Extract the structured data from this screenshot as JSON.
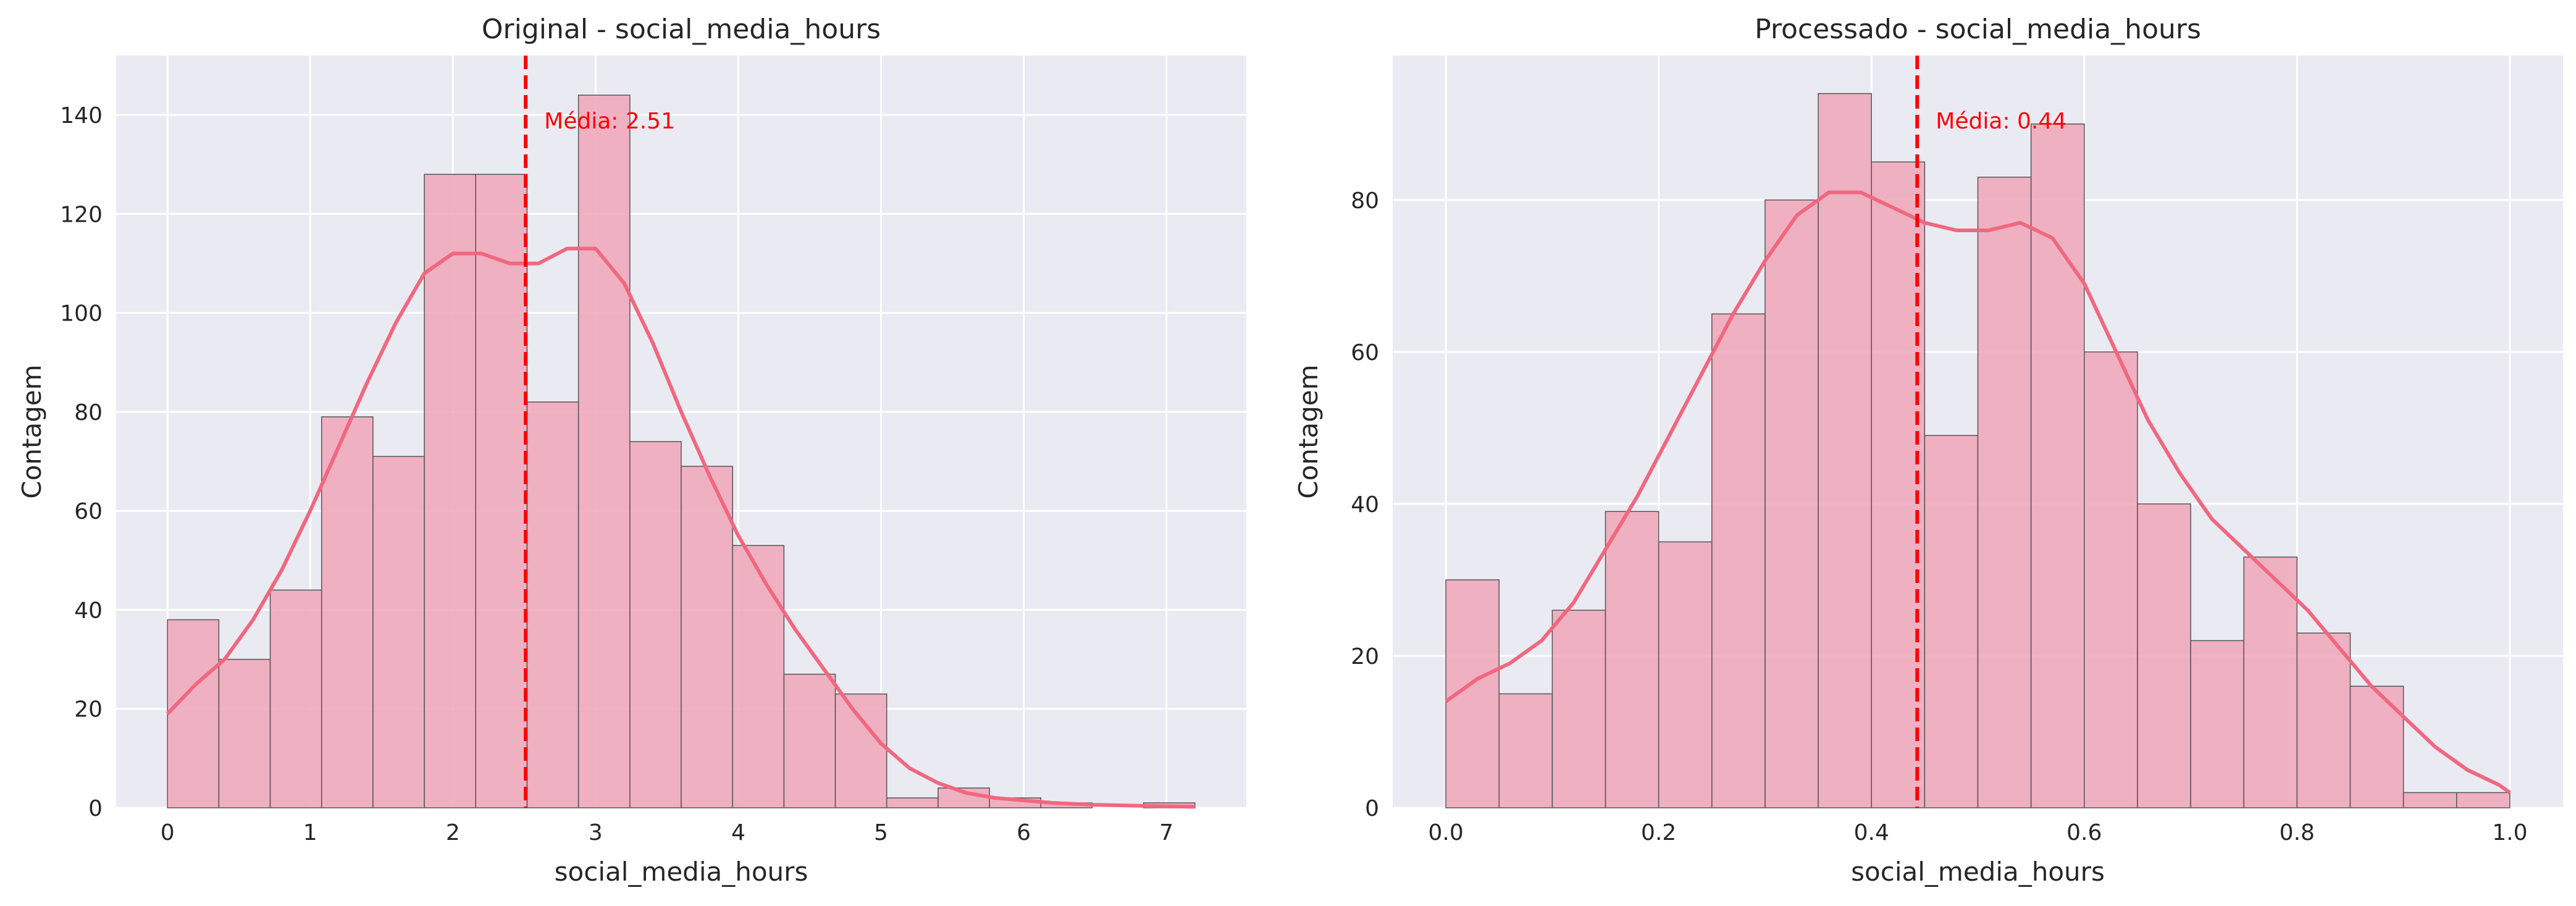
{
  "chart_data": [
    {
      "type": "bar",
      "title": "Original - social_media_hours",
      "xlabel": "social_media_hours",
      "ylabel": "Contagem",
      "xlim": [
        -0.36,
        7.56
      ],
      "ylim": [
        0,
        152
      ],
      "xticks": [
        0,
        1,
        2,
        3,
        4,
        5,
        6,
        7
      ],
      "yticks": [
        0,
        20,
        40,
        60,
        80,
        100,
        120,
        140
      ],
      "bin_edges": [
        0,
        0.36,
        0.72,
        1.08,
        1.44,
        1.8,
        2.16,
        2.52,
        2.88,
        3.24,
        3.6,
        3.96,
        4.32,
        4.68,
        5.04,
        5.4,
        5.76,
        6.12,
        6.48,
        6.84,
        7.2
      ],
      "counts": [
        38,
        30,
        44,
        79,
        71,
        128,
        128,
        82,
        144,
        74,
        69,
        53,
        27,
        23,
        2,
        4,
        2,
        1,
        0,
        1
      ],
      "kde": [
        [
          0,
          19
        ],
        [
          0.2,
          25
        ],
        [
          0.4,
          30
        ],
        [
          0.6,
          38
        ],
        [
          0.8,
          48
        ],
        [
          1.0,
          60
        ],
        [
          1.2,
          73
        ],
        [
          1.4,
          86
        ],
        [
          1.6,
          98
        ],
        [
          1.8,
          108
        ],
        [
          2.0,
          112
        ],
        [
          2.2,
          112
        ],
        [
          2.4,
          110
        ],
        [
          2.6,
          110
        ],
        [
          2.8,
          113
        ],
        [
          3.0,
          113
        ],
        [
          3.2,
          106
        ],
        [
          3.4,
          94
        ],
        [
          3.6,
          80
        ],
        [
          3.8,
          67
        ],
        [
          4.0,
          55
        ],
        [
          4.2,
          45
        ],
        [
          4.4,
          36
        ],
        [
          4.6,
          28
        ],
        [
          4.8,
          20
        ],
        [
          5.0,
          13
        ],
        [
          5.2,
          8
        ],
        [
          5.4,
          5
        ],
        [
          5.6,
          3
        ],
        [
          5.8,
          2
        ],
        [
          6.0,
          1.5
        ],
        [
          6.2,
          1
        ],
        [
          6.5,
          0.6
        ],
        [
          7.0,
          0.3
        ],
        [
          7.2,
          0.2
        ]
      ],
      "mean": 2.51,
      "mean_label": "Média: 2.51",
      "grid": true,
      "colors": {
        "bar": "#f0aabc",
        "edge": "#555555",
        "kde": "#f0687f",
        "mean": "#ff0000",
        "background": "#eaeaf2",
        "grid": "#ffffff"
      }
    },
    {
      "type": "bar",
      "title": "Processado - social_media_hours",
      "xlabel": "social_media_hours",
      "ylabel": "Contagem",
      "xlim": [
        -0.05,
        1.05
      ],
      "ylim": [
        0,
        99
      ],
      "xticks": [
        0.0,
        0.2,
        0.4,
        0.6,
        0.8,
        1.0
      ],
      "yticks": [
        0,
        20,
        40,
        60,
        80
      ],
      "bin_edges": [
        0,
        0.05,
        0.1,
        0.15,
        0.2,
        0.25,
        0.3,
        0.35,
        0.4,
        0.45,
        0.5,
        0.55,
        0.6,
        0.65,
        0.7,
        0.75,
        0.8,
        0.85,
        0.9,
        0.95,
        1.0
      ],
      "counts": [
        30,
        15,
        26,
        39,
        35,
        65,
        80,
        94,
        85,
        49,
        83,
        90,
        60,
        40,
        22,
        33,
        23,
        16,
        2,
        2
      ],
      "kde": [
        [
          0,
          14
        ],
        [
          0.03,
          17
        ],
        [
          0.06,
          19
        ],
        [
          0.09,
          22
        ],
        [
          0.12,
          27
        ],
        [
          0.15,
          34
        ],
        [
          0.18,
          41
        ],
        [
          0.21,
          49
        ],
        [
          0.24,
          57
        ],
        [
          0.27,
          65
        ],
        [
          0.3,
          72
        ],
        [
          0.33,
          78
        ],
        [
          0.36,
          81
        ],
        [
          0.39,
          81
        ],
        [
          0.42,
          79
        ],
        [
          0.45,
          77
        ],
        [
          0.48,
          76
        ],
        [
          0.51,
          76
        ],
        [
          0.54,
          77
        ],
        [
          0.57,
          75
        ],
        [
          0.6,
          69
        ],
        [
          0.63,
          60
        ],
        [
          0.66,
          51
        ],
        [
          0.69,
          44
        ],
        [
          0.72,
          38
        ],
        [
          0.75,
          34
        ],
        [
          0.78,
          30
        ],
        [
          0.81,
          26
        ],
        [
          0.84,
          21
        ],
        [
          0.87,
          16
        ],
        [
          0.9,
          12
        ],
        [
          0.93,
          8
        ],
        [
          0.96,
          5
        ],
        [
          0.99,
          3
        ],
        [
          1.0,
          2
        ]
      ],
      "mean": 0.443,
      "mean_label": "Média: 0.44",
      "grid": true,
      "colors": {
        "bar": "#f0aabc",
        "edge": "#555555",
        "kde": "#f0687f",
        "mean": "#ff0000",
        "background": "#eaeaf2",
        "grid": "#ffffff"
      }
    }
  ]
}
